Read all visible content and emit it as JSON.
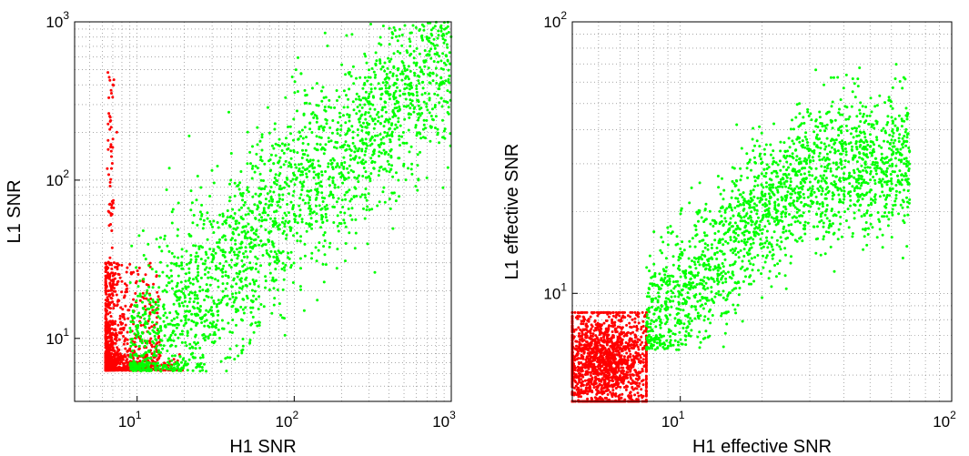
{
  "chart_data": [
    {
      "type": "scatter",
      "xlabel": "H1 SNR",
      "ylabel": "L1 SNR",
      "xscale": "log",
      "yscale": "log",
      "xlim": [
        4,
        1000
      ],
      "ylim": [
        4,
        1000
      ],
      "grid": true,
      "xticks": [
        {
          "base": "10",
          "exp": "1"
        },
        {
          "base": "10",
          "exp": "2"
        },
        {
          "base": "10",
          "exp": "3"
        }
      ],
      "yticks": [
        {
          "base": "10",
          "exp": "1"
        },
        {
          "base": "10",
          "exp": "2"
        },
        {
          "base": "10",
          "exp": "3"
        }
      ],
      "series": [
        {
          "color": "#ff0000",
          "clusters": [
            {
              "shape": "spike",
              "x": 6.8,
              "x_spread": 0.2,
              "y_range": [
                6.5,
                500
              ],
              "n": 160
            },
            {
              "shape": "blob",
              "x_range": [
                6.3,
                14
              ],
              "y_range": [
                6.3,
                30
              ],
              "n": 900
            },
            {
              "shape": "blob",
              "x_range": [
                6.3,
                20
              ],
              "y_range": [
                6.3,
                8
              ],
              "n": 200
            }
          ]
        },
        {
          "color": "#00ff00",
          "clusters": [
            {
              "shape": "band",
              "x_range": [
                9,
                1000
              ],
              "center_y_at_x": [
                [
                  9,
                  7
                ],
                [
                  20,
                  15
                ],
                [
                  50,
                  35
                ],
                [
                  100,
                  85
                ],
                [
                  300,
                  200
                ],
                [
                  1000,
                  700
                ]
              ],
              "log_spread": 0.3,
              "n": 2400
            }
          ]
        }
      ]
    },
    {
      "type": "scatter",
      "xlabel": "H1 effective SNR",
      "ylabel": "L1 effective SNR",
      "xscale": "log",
      "yscale": "log",
      "xlim": [
        4,
        100
      ],
      "ylim": [
        4,
        100
      ],
      "grid": true,
      "xticks": [
        {
          "base": "10",
          "exp": "1"
        },
        {
          "base": "10",
          "exp": "2"
        }
      ],
      "yticks": [
        {
          "base": "10",
          "exp": "1"
        },
        {
          "base": "10",
          "exp": "2"
        }
      ],
      "series": [
        {
          "color": "#ff0000",
          "clusters": [
            {
              "shape": "blob",
              "x_range": [
                4,
                7.5
              ],
              "y_range": [
                4,
                8.5
              ],
              "center": [
                5.3,
                5.5
              ],
              "n": 1600
            }
          ]
        },
        {
          "color": "#00ff00",
          "clusters": [
            {
              "shape": "band",
              "x_range": [
                7.5,
                70
              ],
              "center_y_at_x": [
                [
                  8,
                  8
                ],
                [
                  12,
                  12
                ],
                [
                  20,
                  20
                ],
                [
                  30,
                  28
                ],
                [
                  50,
                  30
                ]
              ],
              "log_spread": 0.13,
              "n": 2000
            }
          ]
        }
      ]
    }
  ]
}
